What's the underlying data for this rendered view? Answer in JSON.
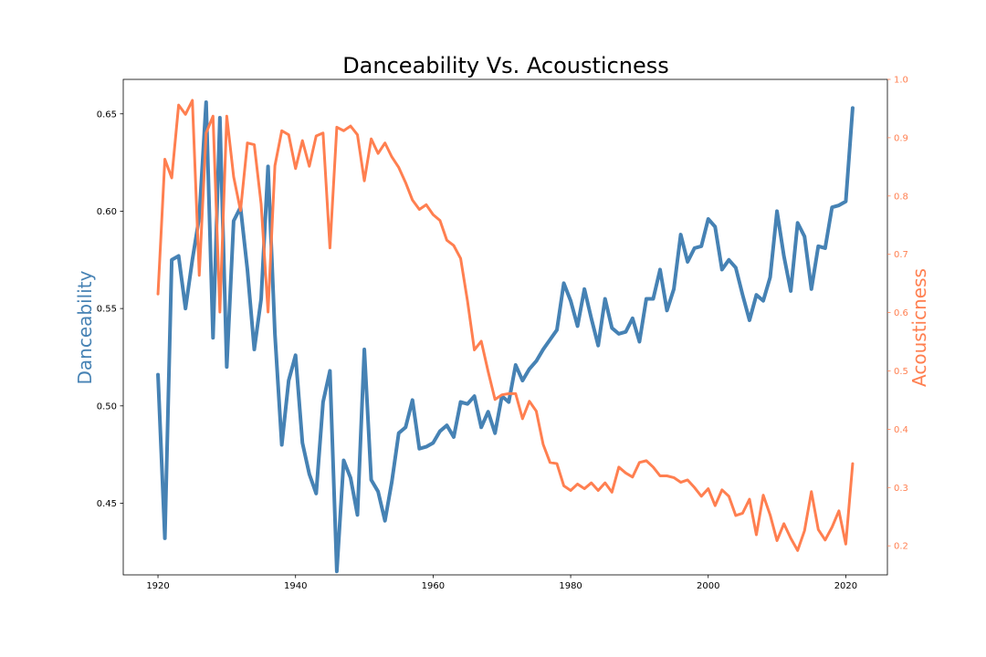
{
  "chart_data": {
    "type": "line",
    "title": "Danceability Vs. Acousticness",
    "xlabel": "",
    "ylabel_left": "Danceability",
    "ylabel_right": "Acousticness",
    "colors": {
      "left": "#4682b4",
      "right": "#ff7f50"
    },
    "xlim": [
      1914.95,
      2026.05
    ],
    "ylim_left": [
      0.4132,
      0.6677
    ],
    "ylim_right": [
      0.1502,
      1.0
    ],
    "xticks": [
      1920,
      1940,
      1960,
      1980,
      2000,
      2020
    ],
    "xtick_labels": [
      "1920",
      "1940",
      "1960",
      "1980",
      "2000",
      "2020"
    ],
    "yticks_left": [
      0.45,
      0.5,
      0.55,
      0.6,
      0.65
    ],
    "ytick_labels_left": [
      "0.45",
      "0.50",
      "0.55",
      "0.60",
      "0.65"
    ],
    "yticks_right": [
      0.2,
      0.3,
      0.4,
      0.5,
      0.6,
      0.7,
      0.8,
      0.9,
      1.0
    ],
    "ytick_labels_right": [
      "0.2",
      "0.3",
      "0.4",
      "0.5",
      "0.6",
      "0.7",
      "0.8",
      "0.9",
      "1.0"
    ],
    "grid": false,
    "x": [
      1920,
      1921,
      1922,
      1923,
      1924,
      1925,
      1926,
      1927,
      1928,
      1929,
      1930,
      1931,
      1932,
      1933,
      1934,
      1935,
      1936,
      1937,
      1938,
      1939,
      1940,
      1941,
      1942,
      1943,
      1944,
      1945,
      1946,
      1947,
      1948,
      1949,
      1950,
      1951,
      1952,
      1953,
      1954,
      1955,
      1956,
      1957,
      1958,
      1959,
      1960,
      1961,
      1962,
      1963,
      1964,
      1965,
      1966,
      1967,
      1968,
      1969,
      1970,
      1971,
      1972,
      1973,
      1974,
      1975,
      1976,
      1977,
      1978,
      1979,
      1980,
      1981,
      1982,
      1983,
      1984,
      1985,
      1986,
      1987,
      1988,
      1989,
      1990,
      1991,
      1992,
      1993,
      1994,
      1995,
      1996,
      1997,
      1998,
      1999,
      2000,
      2001,
      2002,
      2003,
      2004,
      2005,
      2006,
      2007,
      2008,
      2009,
      2010,
      2011,
      2012,
      2013,
      2014,
      2015,
      2016,
      2017,
      2018,
      2019,
      2020,
      2021
    ],
    "series": [
      {
        "axis": "left",
        "values": [
          0.516,
          0.432,
          0.575,
          0.577,
          0.55,
          0.575,
          0.597,
          0.656,
          0.535,
          0.648,
          0.52,
          0.595,
          0.602,
          0.57,
          0.529,
          0.555,
          0.623,
          0.537,
          0.48,
          0.513,
          0.526,
          0.481,
          0.465,
          0.455,
          0.502,
          0.518,
          0.415,
          0.472,
          0.463,
          0.444,
          0.529,
          0.462,
          0.456,
          0.441,
          0.461,
          0.486,
          0.489,
          0.503,
          0.478,
          0.479,
          0.481,
          0.487,
          0.49,
          0.484,
          0.502,
          0.501,
          0.505,
          0.489,
          0.497,
          0.486,
          0.505,
          0.502,
          0.521,
          0.513,
          0.519,
          0.523,
          0.529,
          0.534,
          0.539,
          0.563,
          0.554,
          0.541,
          0.56,
          0.545,
          0.531,
          0.555,
          0.54,
          0.537,
          0.538,
          0.545,
          0.533,
          0.555,
          0.555,
          0.57,
          0.549,
          0.56,
          0.588,
          0.574,
          0.581,
          0.582,
          0.596,
          0.592,
          0.57,
          0.575,
          0.571,
          0.557,
          0.544,
          0.557,
          0.554,
          0.566,
          0.6,
          0.577,
          0.559,
          0.594,
          0.587,
          0.56,
          0.582,
          0.581,
          0.602,
          0.603,
          0.605,
          0.653
        ]
      },
      {
        "axis": "right",
        "values": [
          0.632,
          0.863,
          0.831,
          0.956,
          0.94,
          0.964,
          0.664,
          0.908,
          0.937,
          0.601,
          0.937,
          0.833,
          0.775,
          0.891,
          0.888,
          0.786,
          0.601,
          0.852,
          0.912,
          0.905,
          0.847,
          0.895,
          0.851,
          0.903,
          0.908,
          0.711,
          0.918,
          0.912,
          0.92,
          0.905,
          0.826,
          0.898,
          0.873,
          0.891,
          0.867,
          0.849,
          0.823,
          0.793,
          0.777,
          0.785,
          0.768,
          0.758,
          0.724,
          0.715,
          0.693,
          0.62,
          0.536,
          0.551,
          0.499,
          0.451,
          0.459,
          0.461,
          0.461,
          0.418,
          0.448,
          0.431,
          0.374,
          0.343,
          0.341,
          0.303,
          0.295,
          0.306,
          0.298,
          0.308,
          0.295,
          0.308,
          0.292,
          0.335,
          0.325,
          0.318,
          0.343,
          0.346,
          0.335,
          0.32,
          0.32,
          0.317,
          0.309,
          0.313,
          0.3,
          0.285,
          0.298,
          0.269,
          0.296,
          0.285,
          0.252,
          0.256,
          0.28,
          0.219,
          0.287,
          0.253,
          0.209,
          0.238,
          0.213,
          0.192,
          0.226,
          0.293,
          0.228,
          0.21,
          0.232,
          0.26,
          0.203,
          0.341
        ]
      }
    ]
  }
}
